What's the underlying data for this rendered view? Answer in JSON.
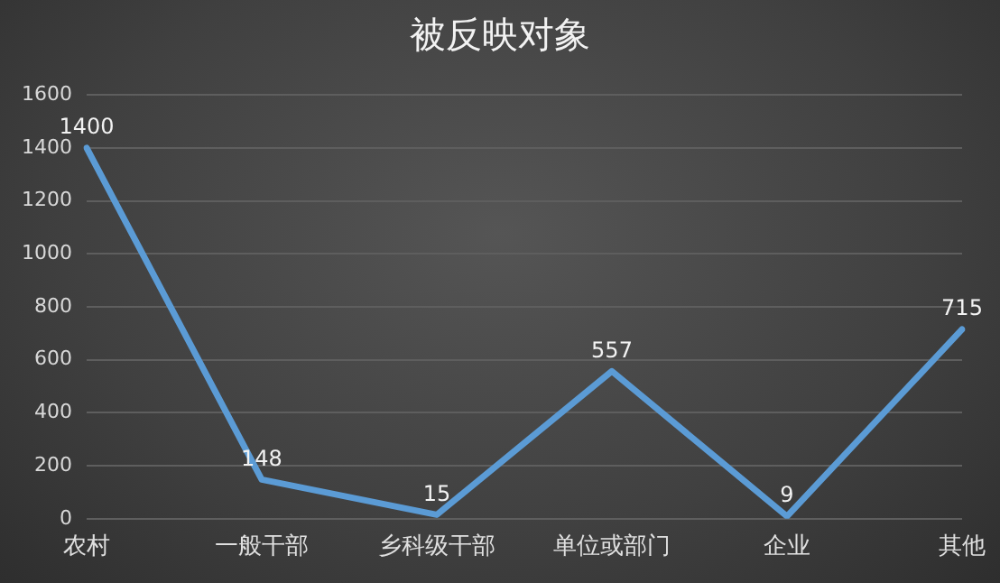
{
  "chart_data": {
    "type": "line",
    "title": "被反映对象",
    "categories": [
      "农村",
      "一般干部",
      "乡科级干部",
      "单位或部门",
      "企业",
      "其他"
    ],
    "values": [
      1400,
      148,
      15,
      557,
      9,
      715
    ],
    "color": "#5b9bd5",
    "ylim": [
      0,
      1600
    ],
    "yticks": [
      0,
      200,
      400,
      600,
      800,
      1000,
      1200,
      1400,
      1600
    ],
    "grid": "y",
    "legend": false,
    "marker": "none",
    "line_style": "solid",
    "data_labels": true
  }
}
